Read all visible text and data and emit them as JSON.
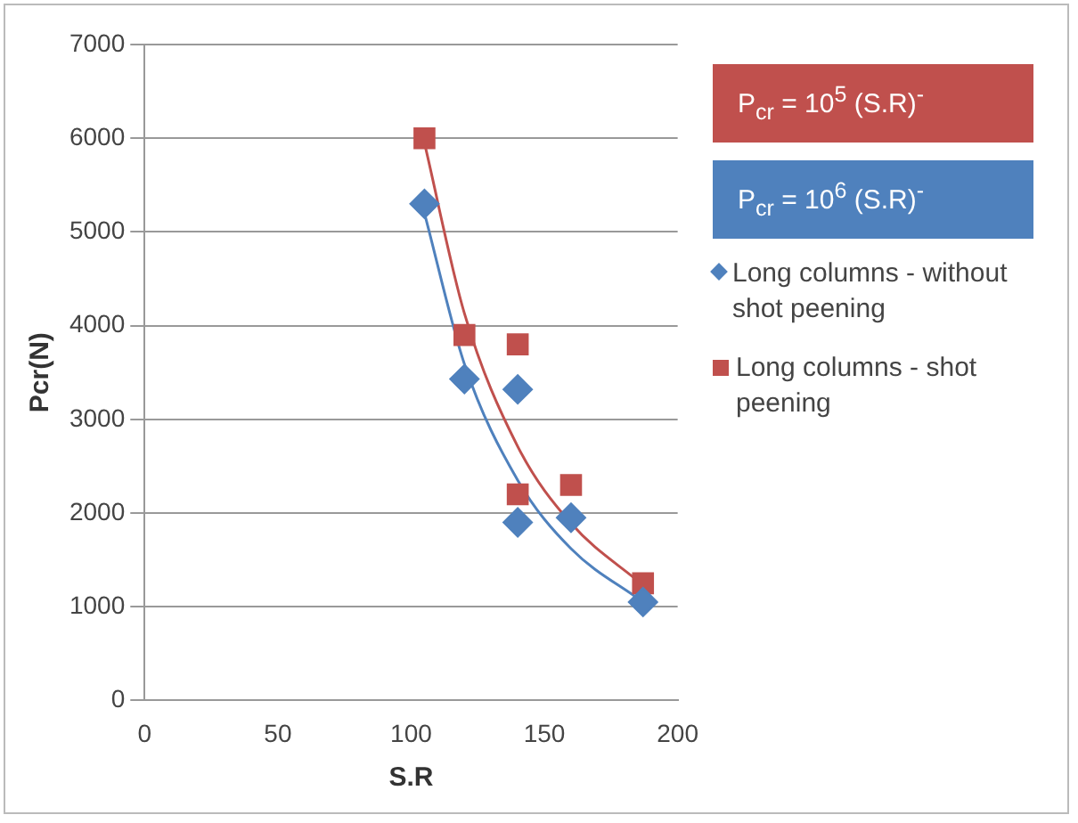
{
  "chart_data": {
    "type": "scatter",
    "xlabel": "S.R",
    "ylabel": "Pcr(N)",
    "xlim": [
      0,
      200
    ],
    "xticks": [
      0,
      50,
      100,
      150,
      200
    ],
    "ylim": [
      0,
      7000
    ],
    "yticks": [
      0,
      1000,
      2000,
      3000,
      4000,
      5000,
      6000,
      7000
    ],
    "grid": "y",
    "legend": "right",
    "annotations": [
      "P$_{cr}$ = 10$^{5}$ (S.R)$^{-}$",
      "P$_{cr}$ = 10$^{6}$ (S.R)$^{-}$"
    ],
    "series": [
      {
        "name": "Long columns - without shot peening",
        "color": "#4f81bd",
        "marker": "diamond",
        "x": [
          105,
          120,
          140,
          140,
          160,
          187
        ],
        "values": [
          5300,
          3430,
          3320,
          1900,
          1950,
          1050
        ]
      },
      {
        "name": "Long columns - shot peening",
        "color": "#c0504d",
        "marker": "square",
        "x": [
          105,
          120,
          140,
          140,
          160,
          187
        ],
        "values": [
          6000,
          3900,
          3800,
          2200,
          2300,
          1250
        ]
      },
      {
        "type": "line",
        "color": "#c0504d",
        "marker": "none",
        "x": [
          105,
          120,
          140,
          160,
          187
        ],
        "values": [
          5950,
          4130,
          2710,
          1890,
          1230
        ]
      },
      {
        "type": "line",
        "color": "#4f81bd",
        "marker": "none",
        "x": [
          105,
          120,
          140,
          160,
          187
        ],
        "values": [
          5200,
          3590,
          2350,
          1620,
          1050
        ]
      }
    ]
  }
}
